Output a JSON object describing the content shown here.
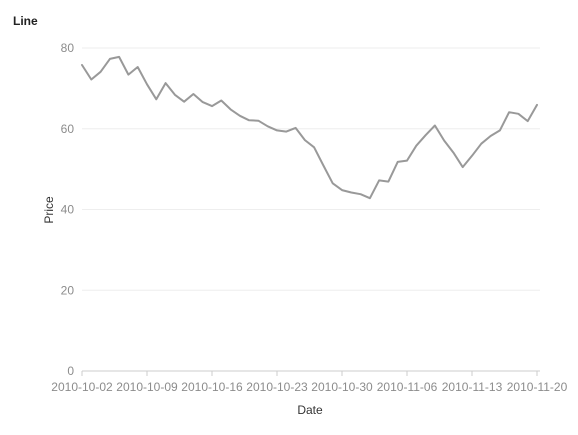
{
  "chart_data": {
    "type": "line",
    "title": "Line",
    "xlabel": "Date",
    "ylabel": "Price",
    "ylim": [
      0,
      80
    ],
    "y_ticks": [
      0,
      20,
      40,
      60,
      80
    ],
    "grid": true,
    "x_tick_labels": [
      "2010-10-02",
      "2010-10-09",
      "2010-10-16",
      "2010-10-23",
      "2010-10-30",
      "2010-11-06",
      "2010-11-13",
      "2010-11-20"
    ],
    "line_color": "#999999",
    "series": [
      {
        "x": [
          "2010-10-02",
          "2010-10-03",
          "2010-10-04",
          "2010-10-05",
          "2010-10-06",
          "2010-10-07",
          "2010-10-08",
          "2010-10-09",
          "2010-10-10",
          "2010-10-11",
          "2010-10-12",
          "2010-10-13",
          "2010-10-14",
          "2010-10-15",
          "2010-10-16",
          "2010-10-17",
          "2010-10-18",
          "2010-10-19",
          "2010-10-20",
          "2010-10-21",
          "2010-10-22",
          "2010-10-23",
          "2010-10-24",
          "2010-10-25",
          "2010-10-26",
          "2010-10-27",
          "2010-10-28",
          "2010-10-29",
          "2010-10-30",
          "2010-10-31",
          "2010-11-01",
          "2010-11-02",
          "2010-11-03",
          "2010-11-04",
          "2010-11-05",
          "2010-11-06",
          "2010-11-07",
          "2010-11-08",
          "2010-11-09",
          "2010-11-10",
          "2010-11-11",
          "2010-11-12",
          "2010-11-13",
          "2010-11-14",
          "2010-11-15",
          "2010-11-16",
          "2010-11-17",
          "2010-11-18",
          "2010-11-19",
          "2010-11-20"
        ],
        "values": [
          75.8,
          72.2,
          74.1,
          77.3,
          77.8,
          73.4,
          75.3,
          71.0,
          67.3,
          71.3,
          68.4,
          66.7,
          68.6,
          66.6,
          65.6,
          67.0,
          64.8,
          63.2,
          62.1,
          62.0,
          60.6,
          59.6,
          59.3,
          60.2,
          57.2,
          55.4,
          50.9,
          46.5,
          44.8,
          44.2,
          43.8,
          42.8,
          47.2,
          46.9,
          51.8,
          52.1,
          55.8,
          58.4,
          60.8,
          57.1,
          54.1,
          50.5,
          53.3,
          56.3,
          58.2,
          59.6,
          64.1,
          63.7,
          61.9,
          65.9
        ]
      }
    ]
  }
}
